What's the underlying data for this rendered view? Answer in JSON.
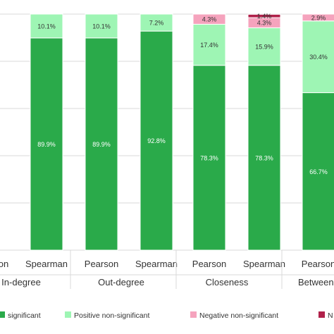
{
  "chart_data": {
    "type": "bar",
    "stacked": true,
    "ylim": [
      0,
      100
    ],
    "grid": true,
    "legend_position": "bottom",
    "x_label_rows": [
      "method",
      "group"
    ],
    "categories": [
      {
        "method": "Pearson",
        "group": "In-degree"
      },
      {
        "method": "Spearman",
        "group": "In-degree"
      },
      {
        "method": "Pearson",
        "group": "Out-degree"
      },
      {
        "method": "Spearman",
        "group": "Out-degree"
      },
      {
        "method": "Pearson",
        "group": "Closeness"
      },
      {
        "method": "Spearman",
        "group": "Closeness"
      },
      {
        "method": "Pearson",
        "group": "Betweenness"
      }
    ],
    "groups": [
      "In-degree",
      "Out-degree",
      "Closeness",
      "Betweenness"
    ],
    "series": [
      {
        "name": "Positive significant",
        "color": "#2aaa4a",
        "label_color": "#ffffff",
        "values": [
          null,
          89.9,
          89.9,
          92.8,
          78.3,
          78.3,
          66.7
        ],
        "labels": [
          "",
          "89.9%",
          "89.9%",
          "92.8%",
          "78.3%",
          "78.3%",
          "66.7%"
        ]
      },
      {
        "name": "Positive non-significant",
        "color": "#9ef5b4",
        "label_color": "#333333",
        "values": [
          null,
          10.1,
          10.1,
          7.2,
          17.4,
          15.9,
          30.4
        ],
        "labels": [
          "",
          "10.1%",
          "10.1%",
          "7.2%",
          "17.4%",
          "15.9%",
          "30.4%"
        ]
      },
      {
        "name": "Negative non-significant",
        "color": "#f5a3bd",
        "label_color": "#333333",
        "values": [
          null,
          0,
          0,
          0,
          4.3,
          4.3,
          2.9
        ],
        "labels": [
          "",
          "",
          "",
          "",
          "4.3%",
          "4.3%",
          "2.9%"
        ]
      },
      {
        "name": "Negative significant",
        "color": "#b0214a",
        "label_color": "#333333",
        "values": [
          null,
          0,
          0,
          0,
          0,
          1.4,
          0
        ],
        "labels": [
          "",
          "",
          "",
          "",
          "",
          "1.4%",
          ""
        ]
      }
    ],
    "legend_labels": [
      "significant",
      "Positive non-significant",
      "Negative non-significant",
      "N"
    ]
  }
}
